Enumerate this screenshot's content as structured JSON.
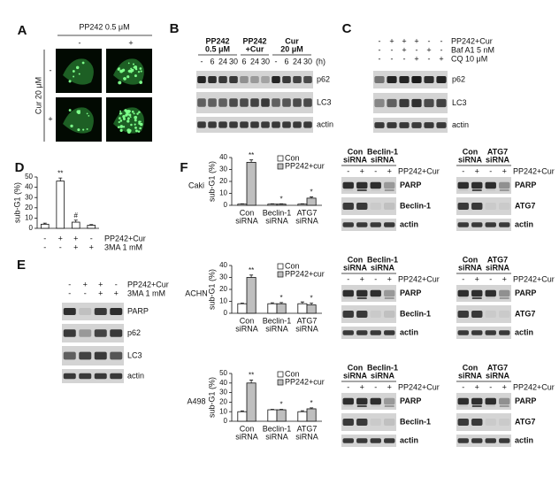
{
  "panels": {
    "A": {
      "letter": "A",
      "treatment": "PP242 0.5 μM",
      "column_signs": [
        "-",
        "+"
      ],
      "row_treatment": "Cur 20 μM",
      "row_signs": [
        "-",
        "+"
      ]
    },
    "B": {
      "letter": "B",
      "groups": [
        {
          "header": [
            "PP242",
            "0.5 μM"
          ],
          "times": [
            "-",
            "6",
            "24",
            "30"
          ]
        },
        {
          "header": [
            "PP242",
            "+Cur"
          ],
          "times": [
            "6",
            "24",
            "30"
          ]
        },
        {
          "header": [
            "Cur",
            "20 μM"
          ],
          "times": [
            "-",
            "6",
            "24",
            "30"
          ]
        }
      ],
      "time_unit": "(h)",
      "proteins": [
        "p62",
        "LC3",
        "actin"
      ]
    },
    "C": {
      "letter": "C",
      "conditions": [
        {
          "label": "PP242+Cur",
          "signs": [
            "-",
            "+",
            "+",
            "+",
            "-",
            "-"
          ]
        },
        {
          "label": "Baf A1 5 nM",
          "signs": [
            "-",
            "-",
            "+",
            "-",
            "+",
            "-"
          ]
        },
        {
          "label": "CQ 10 μM",
          "signs": [
            "-",
            "-",
            "-",
            "+",
            "-",
            "+"
          ]
        }
      ],
      "proteins": [
        "p62",
        "LC3",
        "actin"
      ]
    },
    "D": {
      "letter": "D"
    },
    "E": {
      "letter": "E",
      "conditions": [
        {
          "label": "PP242+Cur",
          "signs": [
            "-",
            "+",
            "+",
            "-"
          ]
        },
        {
          "label": "3MA 1 mM",
          "signs": [
            "-",
            "-",
            "+",
            "+"
          ]
        }
      ],
      "proteins": [
        "PARP",
        "p62",
        "LC3",
        "actin"
      ]
    },
    "F": {
      "letter": "F",
      "rows": [
        {
          "cell_line": "Caki",
          "blots": [
            {
              "headers": [
                [
                  "Con",
                  "siRNA"
                ],
                [
                  "Beclin-1",
                  "siRNA"
                ]
              ],
              "signs": [
                "-",
                "+",
                "-",
                "+"
              ],
              "treatment": "PP242+Cur",
              "proteins": [
                "PARP",
                "Beclin-1",
                "actin"
              ]
            },
            {
              "headers": [
                [
                  "Con",
                  "siRNA"
                ],
                [
                  "ATG7",
                  "siRNA"
                ]
              ],
              "signs": [
                "-",
                "+",
                "-",
                "+"
              ],
              "treatment": "PP242+Cur",
              "proteins": [
                "PARP",
                "ATG7",
                "actin"
              ]
            }
          ]
        },
        {
          "cell_line": "ACHN",
          "blots": [
            {
              "headers": [
                [
                  "Con",
                  "siRNA"
                ],
                [
                  "Beclin-1",
                  "siRNA"
                ]
              ],
              "signs": [
                "-",
                "+",
                "-",
                "+"
              ],
              "treatment": "PP242+Cur",
              "proteins": [
                "PARP",
                "Beclin-1",
                "actin"
              ]
            },
            {
              "headers": [
                [
                  "Con",
                  "siRNA"
                ],
                [
                  "ATG7",
                  "siRNA"
                ]
              ],
              "signs": [
                "-",
                "+",
                "-",
                "+"
              ],
              "treatment": "PP242+Cur",
              "proteins": [
                "PARP",
                "ATG7",
                "actin"
              ]
            }
          ]
        },
        {
          "cell_line": "A498",
          "blots": [
            {
              "headers": [
                [
                  "Con",
                  "siRNA"
                ],
                [
                  "Beclin-1",
                  "siRNA"
                ]
              ],
              "signs": [
                "-",
                "+",
                "-",
                "+"
              ],
              "treatment": "PP242+Cur",
              "proteins": [
                "PARP",
                "Beclin-1",
                "actin"
              ]
            },
            {
              "headers": [
                [
                  "Con",
                  "siRNA"
                ],
                [
                  "ATG7",
                  "siRNA"
                ]
              ],
              "signs": [
                "-",
                "+",
                "-",
                "+"
              ],
              "treatment": "PP242+Cur",
              "proteins": [
                "PARP",
                "ATG7",
                "actin"
              ]
            }
          ]
        }
      ]
    }
  },
  "chart_data": [
    {
      "type": "bar",
      "ylabel": "sub-G1 (%)",
      "ylim": [
        0,
        50
      ],
      "yticks": [
        0,
        10,
        20,
        30,
        40,
        50
      ],
      "values": [
        4,
        46,
        6,
        3
      ],
      "errors": [
        1,
        3,
        2,
        0.6
      ],
      "color": "#ffffff",
      "annotations": [
        null,
        "**",
        "#",
        null
      ],
      "conditions": [
        {
          "label": "PP242+Cur",
          "signs": [
            "-",
            "+",
            "+",
            "-"
          ]
        },
        {
          "label": "3MA 1 mM",
          "signs": [
            "-",
            "-",
            "+",
            "+"
          ]
        }
      ]
    },
    {
      "type": "bar",
      "ylabel": "sub-G1 (%)",
      "ylim": [
        0,
        40
      ],
      "yticks": [
        0,
        10,
        20,
        30,
        40
      ],
      "categories": [
        [
          "Con",
          "siRNA"
        ],
        [
          "Beclin-1",
          "siRNA"
        ],
        [
          "ATG7",
          "siRNA"
        ]
      ],
      "series": [
        {
          "name": "Con",
          "color": "#ffffff",
          "values": [
            1,
            1,
            1
          ],
          "errors": [
            0.3,
            0.3,
            0.3
          ]
        },
        {
          "name": "PP242+cur",
          "color": "#bfbfbf",
          "values": [
            36,
            1,
            6
          ],
          "errors": [
            2,
            0.3,
            1
          ]
        }
      ],
      "annotations": [
        "**",
        "*",
        "*"
      ]
    },
    {
      "type": "bar",
      "ylabel": "sub-G1 (%)",
      "ylim": [
        0,
        40
      ],
      "yticks": [
        0,
        10,
        20,
        30,
        40
      ],
      "categories": [
        [
          "Con",
          "siRNA"
        ],
        [
          "Beclin-1",
          "siRNA"
        ],
        [
          "ATG7",
          "siRNA"
        ]
      ],
      "series": [
        {
          "name": "Con",
          "color": "#ffffff",
          "values": [
            8,
            8,
            8
          ],
          "errors": [
            0.5,
            0.8,
            1.5
          ]
        },
        {
          "name": "PP242+cur",
          "color": "#bfbfbf",
          "values": [
            30,
            8,
            7
          ],
          "errors": [
            2,
            1,
            1.5
          ]
        }
      ],
      "annotations": [
        "**",
        "*",
        "*"
      ]
    },
    {
      "type": "bar",
      "ylabel": "sub-G1 (%)",
      "ylim": [
        0,
        50
      ],
      "yticks": [
        0,
        10,
        20,
        30,
        40,
        50
      ],
      "categories": [
        [
          "Con",
          "siRNA"
        ],
        [
          "Beclin-1",
          "siRNA"
        ],
        [
          "ATG7",
          "siRNA"
        ]
      ],
      "series": [
        {
          "name": "Con",
          "color": "#ffffff",
          "values": [
            10,
            12,
            10
          ],
          "errors": [
            0.8,
            0.5,
            1
          ]
        },
        {
          "name": "PP242+cur",
          "color": "#bfbfbf",
          "values": [
            40,
            12,
            13
          ],
          "errors": [
            3,
            0.5,
            1
          ]
        }
      ],
      "annotations": [
        "**",
        "*",
        "*"
      ]
    }
  ]
}
